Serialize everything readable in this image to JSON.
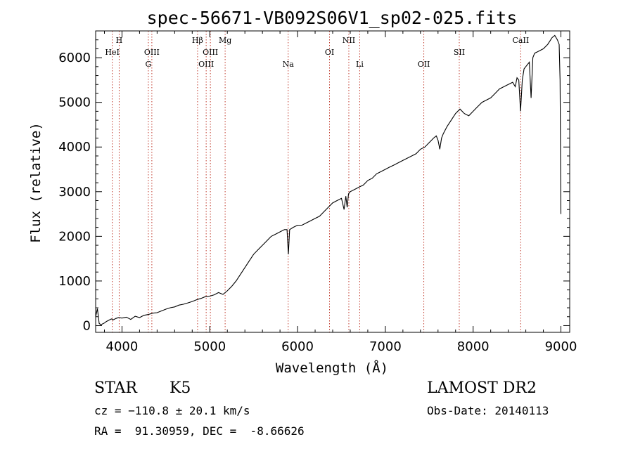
{
  "chart_data": {
    "type": "line",
    "title": "spec-56671-VB092S06V1_sp02-025.fits",
    "xlabel": "Wavelength (Å)",
    "ylabel": "Flux (relative)",
    "xlim": [
      3700,
      9100
    ],
    "ylim": [
      -150,
      6600
    ],
    "xticks": [
      4000,
      5000,
      6000,
      7000,
      8000,
      9000
    ],
    "yticks": [
      0,
      1000,
      2000,
      3000,
      4000,
      5000,
      6000
    ],
    "grid": false,
    "series": [
      {
        "x": [
          3700,
          3720,
          3740,
          3760,
          3780,
          3800,
          3820,
          3850,
          3880,
          3900,
          3930,
          3960,
          4000,
          4050,
          4100,
          4150,
          4200,
          4250,
          4300,
          4350,
          4400,
          4450,
          4500,
          4550,
          4600,
          4650,
          4700,
          4750,
          4800,
          4850,
          4900,
          4950,
          5000,
          5050,
          5100,
          5150,
          5200,
          5250,
          5300,
          5350,
          5400,
          5450,
          5500,
          5550,
          5600,
          5650,
          5700,
          5750,
          5800,
          5850,
          5880,
          5895,
          5910,
          5950,
          6000,
          6050,
          6100,
          6150,
          6200,
          6250,
          6300,
          6350,
          6400,
          6450,
          6500,
          6530,
          6550,
          6565,
          6580,
          6600,
          6650,
          6700,
          6750,
          6800,
          6850,
          6900,
          6950,
          7000,
          7050,
          7100,
          7150,
          7200,
          7250,
          7300,
          7350,
          7400,
          7450,
          7500,
          7550,
          7580,
          7600,
          7620,
          7640,
          7660,
          7700,
          7750,
          7800,
          7850,
          7900,
          7950,
          8000,
          8050,
          8100,
          8150,
          8200,
          8250,
          8300,
          8350,
          8400,
          8450,
          8480,
          8500,
          8520,
          8540,
          8560,
          8580,
          8600,
          8640,
          8660,
          8680,
          8700,
          8750,
          8800,
          8850,
          8900,
          8930,
          8960,
          8980,
          8990,
          9000
        ],
        "y": [
          200,
          380,
          50,
          20,
          40,
          60,
          90,
          120,
          150,
          130,
          160,
          180,
          170,
          190,
          140,
          210,
          180,
          230,
          250,
          280,
          290,
          330,
          370,
          400,
          420,
          460,
          480,
          510,
          540,
          580,
          610,
          650,
          660,
          690,
          740,
          700,
          780,
          880,
          1000,
          1150,
          1300,
          1450,
          1600,
          1700,
          1800,
          1900,
          2000,
          2050,
          2100,
          2150,
          2150,
          1600,
          2150,
          2200,
          2250,
          2250,
          2300,
          2350,
          2400,
          2450,
          2550,
          2650,
          2750,
          2800,
          2850,
          2600,
          2900,
          2650,
          2950,
          3000,
          3050,
          3100,
          3150,
          3250,
          3300,
          3400,
          3450,
          3500,
          3550,
          3600,
          3650,
          3700,
          3750,
          3800,
          3850,
          3950,
          4000,
          4100,
          4200,
          4250,
          4150,
          3950,
          4200,
          4300,
          4450,
          4600,
          4750,
          4850,
          4750,
          4700,
          4800,
          4900,
          5000,
          5050,
          5100,
          5200,
          5300,
          5350,
          5400,
          5450,
          5350,
          5550,
          5500,
          4800,
          5500,
          5750,
          5800,
          5900,
          5100,
          6000,
          6100,
          6150,
          6200,
          6300,
          6450,
          6500,
          6400,
          6300,
          5500,
          2500
        ]
      }
    ],
    "lines": [
      {
        "x": 3889,
        "label": "HeI",
        "row": 2
      },
      {
        "x": 3968,
        "label": "H",
        "row": 1
      },
      {
        "x": 4300,
        "label": "G",
        "row": 3
      },
      {
        "x": 4340,
        "label": "OIII",
        "row": 2
      },
      {
        "x": 4861,
        "label": "Hβ",
        "row": 1
      },
      {
        "x": 4959,
        "label": "OIII",
        "row": 3
      },
      {
        "x": 5007,
        "label": "OIII",
        "row": 2
      },
      {
        "x": 5175,
        "label": "Mg",
        "row": 1
      },
      {
        "x": 5893,
        "label": "Na",
        "row": 3
      },
      {
        "x": 6364,
        "label": "OI",
        "row": 2
      },
      {
        "x": 6584,
        "label": "NII",
        "row": 1
      },
      {
        "x": 6708,
        "label": "Li",
        "row": 3
      },
      {
        "x": 7438,
        "label": "OII",
        "row": 3
      },
      {
        "x": 7842,
        "label": "SII",
        "row": 2
      },
      {
        "x": 8542,
        "label": "CaII",
        "row": 1
      }
    ]
  },
  "info": {
    "object_class": "STAR",
    "subclass": "K5",
    "survey": "LAMOST DR2",
    "redshift": "cz = −110.8 ± 20.1 km/s",
    "obs_date": "Obs-Date: 20140113",
    "coords": "RA =  91.30959, DEC =  -8.66626"
  }
}
